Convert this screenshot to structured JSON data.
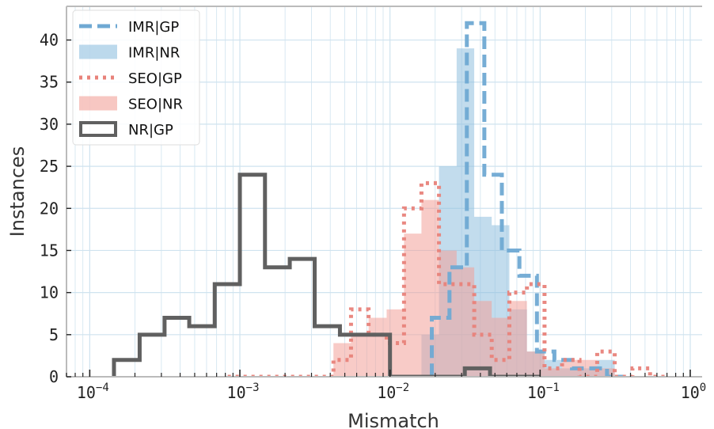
{
  "chart_data": {
    "type": "histogram",
    "xlabel": "Mismatch",
    "ylabel": "Instances",
    "xscale": "log",
    "xlim": [
      7e-05,
      1.2
    ],
    "ylim": [
      0,
      44
    ],
    "grid": true,
    "legend_position": "top-left",
    "x_ticks": [
      {
        "base": "10",
        "exp": "−4",
        "value": 0.0001
      },
      {
        "base": "10",
        "exp": "−3",
        "value": 0.001
      },
      {
        "base": "10",
        "exp": "−2",
        "value": 0.01
      },
      {
        "base": "10",
        "exp": "−1",
        "value": 0.1
      },
      {
        "base": "10",
        "exp": "0",
        "value": 1
      }
    ],
    "y_ticks": [
      "0",
      "5",
      "10",
      "15",
      "20",
      "25",
      "30",
      "35",
      "40"
    ],
    "series": [
      {
        "name": "IMR|NR",
        "style": "filled",
        "color": "#8fbfdf",
        "edges": [
          0.00083,
          0.00109,
          0.00143,
          0.00187,
          0.00245,
          0.00321,
          0.0042,
          0.0055,
          0.0072,
          0.0095,
          0.0124,
          0.0162,
          0.0212,
          0.0278,
          0.0364,
          0.0476,
          0.0624,
          0.0817,
          0.107,
          0.14,
          0.183,
          0.24,
          0.314,
          0.412
        ],
        "counts": [
          0,
          0,
          0,
          0,
          0,
          0,
          0,
          0,
          0,
          0,
          0,
          5,
          25,
          39,
          19,
          18,
          8,
          3,
          2,
          1,
          1,
          2,
          0
        ]
      },
      {
        "name": "SEO|NR",
        "style": "filled",
        "color": "#f2a199",
        "edges": [
          0.00083,
          0.00109,
          0.00143,
          0.00187,
          0.00245,
          0.00321,
          0.0042,
          0.0055,
          0.0072,
          0.0095,
          0.0124,
          0.0162,
          0.0212,
          0.0278,
          0.0364,
          0.0476,
          0.0624,
          0.0817,
          0.107,
          0.14,
          0.183,
          0.24,
          0.314,
          0.412
        ],
        "counts": [
          0,
          0,
          0,
          0,
          0,
          0,
          4,
          5,
          7,
          8,
          17,
          21,
          15,
          13,
          9,
          7,
          9,
          3,
          1,
          2,
          2,
          1,
          0
        ]
      },
      {
        "name": "IMR|GP",
        "style": "dashed",
        "color": "#6fa9d3",
        "edges": [
          0.0145,
          0.019,
          0.0249,
          0.0325,
          0.0425,
          0.0556,
          0.0728,
          0.0952,
          0.1245,
          0.163,
          0.213,
          0.279,
          0.365
        ],
        "counts": [
          0,
          7,
          13,
          42,
          24,
          15,
          12,
          3,
          2,
          1,
          1,
          0
        ]
      },
      {
        "name": "SEO|GP",
        "style": "dotted",
        "color": "#e8827a",
        "edges": [
          0.00083,
          0.00109,
          0.00143,
          0.00187,
          0.00245,
          0.00321,
          0.0042,
          0.0055,
          0.0072,
          0.0095,
          0.0124,
          0.0162,
          0.0212,
          0.0278,
          0.0364,
          0.0476,
          0.0624,
          0.0817,
          0.107,
          0.14,
          0.183,
          0.24,
          0.314,
          0.412,
          0.54,
          0.7
        ],
        "counts": [
          0,
          0,
          0,
          0,
          0,
          0,
          2,
          8,
          5,
          4,
          20,
          23,
          11,
          11,
          5,
          2,
          10,
          11,
          1,
          2,
          0,
          3,
          0,
          1,
          0
        ]
      },
      {
        "name": "NR|GP",
        "style": "step",
        "color": "#606060",
        "edges": [
          0.000145,
          0.000215,
          0.000315,
          0.00046,
          0.00068,
          0.001,
          0.00147,
          0.00215,
          0.00315,
          0.00464,
          0.0068,
          0.01,
          0.0147,
          0.0215,
          0.0315,
          0.0464,
          0.068,
          0.1
        ],
        "counts": [
          2,
          5,
          7,
          6,
          11,
          24,
          13,
          14,
          6,
          5,
          5,
          0,
          0,
          0,
          1,
          0,
          0
        ]
      }
    ]
  }
}
